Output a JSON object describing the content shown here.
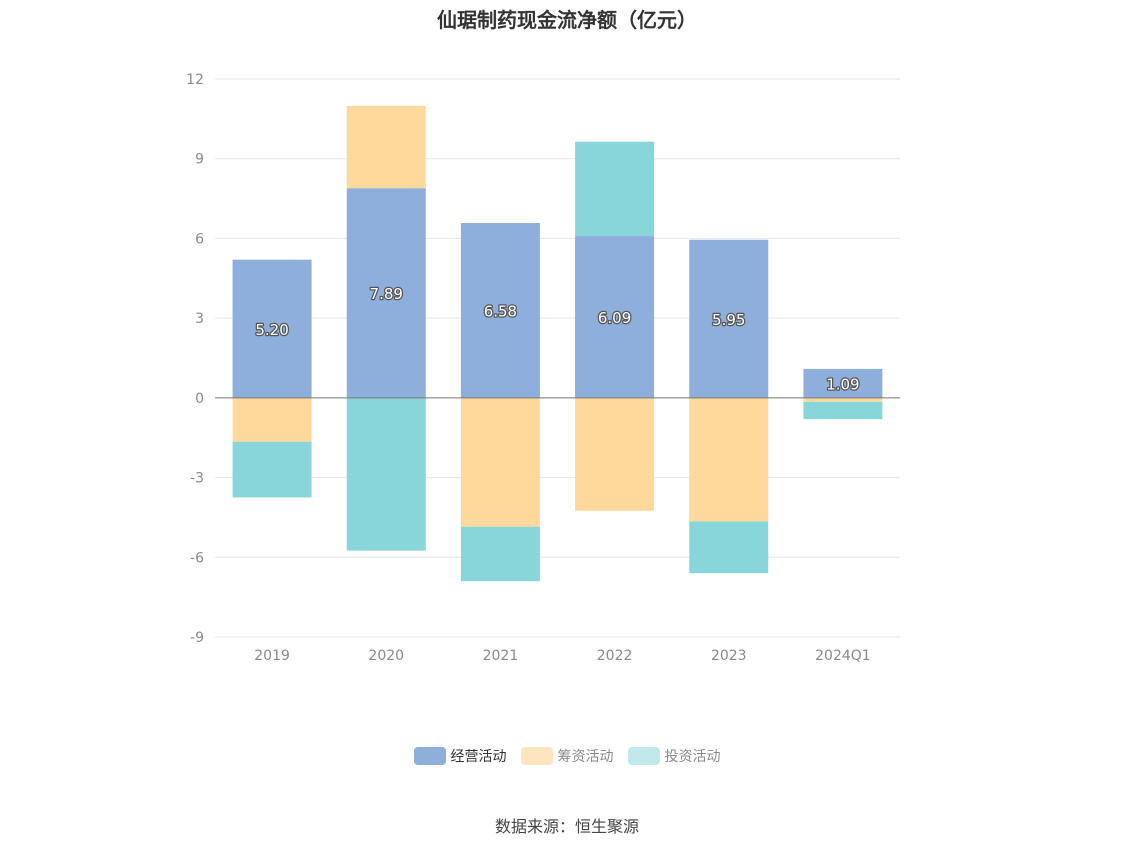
{
  "title": "仙琚制药现金流净额（亿元）",
  "source": "数据来源：恒生聚源",
  "chart_data": {
    "type": "bar",
    "stacked": true,
    "categories": [
      "2019",
      "2020",
      "2021",
      "2022",
      "2023",
      "2024Q1"
    ],
    "ylim": [
      -9,
      12
    ],
    "yticks": [
      12,
      9,
      6,
      3,
      0,
      -3,
      -6,
      -9
    ],
    "grid": true,
    "legend_position": "bottom",
    "series": [
      {
        "name": "经营活动",
        "color": "#8eaedb",
        "values": [
          5.2,
          7.89,
          6.58,
          6.09,
          5.95,
          1.09
        ],
        "labels": [
          "5.20",
          "7.89",
          "6.58",
          "6.09",
          "5.95",
          "1.09"
        ]
      },
      {
        "name": "筹资活动",
        "color": "#fed99b",
        "values": [
          -1.65,
          3.1,
          -4.85,
          -4.25,
          -4.65,
          -0.15
        ]
      },
      {
        "name": "投资活动",
        "color": "#88d6da",
        "values": [
          -2.1,
          -5.75,
          -2.05,
          3.55,
          -1.95,
          -0.65
        ]
      }
    ]
  },
  "legend": [
    {
      "label": "经营活动",
      "color": "#8eaedb",
      "muted": false
    },
    {
      "label": "筹资活动",
      "color": "#fee5c0",
      "muted": true
    },
    {
      "label": "投资活动",
      "color": "#c1e9ec",
      "muted": true
    }
  ]
}
